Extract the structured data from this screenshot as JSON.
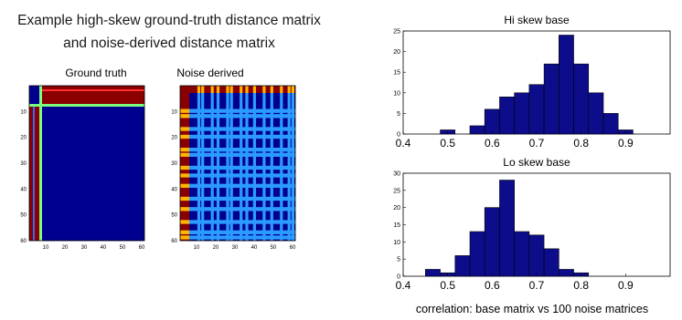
{
  "page": {
    "title_line1": "Example high-skew ground-truth distance matrix",
    "title_line2": "and noise-derived distance matrix"
  },
  "matrices": [
    {
      "title": "Ground truth",
      "xticks": [
        "10",
        "20",
        "30",
        "40",
        "50",
        "60"
      ],
      "yticks": [
        "10",
        "20",
        "30",
        "40",
        "50",
        "60"
      ]
    },
    {
      "title": "Noise derived",
      "xticks": [
        "10",
        "20",
        "30",
        "40",
        "50",
        "60"
      ],
      "yticks": [
        "10",
        "20",
        "30",
        "40",
        "50",
        "60"
      ]
    }
  ],
  "chart_data": [
    {
      "type": "bar",
      "title": "Hi skew base",
      "xlabel": "",
      "ylabel": "",
      "xlim": [
        0.4,
        1.0
      ],
      "ylim": [
        0,
        25
      ],
      "xticks": [
        0.4,
        0.5,
        0.6,
        0.7,
        0.8,
        0.9
      ],
      "yticks": [
        0,
        5,
        10,
        15,
        20,
        25
      ],
      "bin_width": 0.0333,
      "bin_starts": [
        0.45,
        0.4833,
        0.5167,
        0.55,
        0.5833,
        0.6167,
        0.65,
        0.6833,
        0.7167,
        0.75,
        0.7833,
        0.8167,
        0.85,
        0.8833
      ],
      "values": [
        0,
        1,
        0,
        2,
        6,
        9,
        10,
        12,
        17,
        24,
        17,
        10,
        5,
        1
      ],
      "grid": false,
      "color": "#0d0d8c"
    },
    {
      "type": "bar",
      "title": "Lo skew base",
      "xlabel": "correlation: base matrix vs 100 noise matrices",
      "ylabel": "",
      "xlim": [
        0.4,
        1.0
      ],
      "ylim": [
        0,
        30
      ],
      "xticks": [
        0.4,
        0.5,
        0.6,
        0.7,
        0.8,
        0.9
      ],
      "yticks": [
        0,
        5,
        10,
        15,
        20,
        25,
        30
      ],
      "bin_width": 0.0333,
      "bin_starts": [
        0.45,
        0.4833,
        0.5167,
        0.55,
        0.5833,
        0.6167,
        0.65,
        0.6833,
        0.7167,
        0.75,
        0.7833,
        0.8167
      ],
      "values": [
        2,
        1,
        6,
        13,
        20,
        28,
        13,
        12,
        8,
        2,
        1,
        0
      ],
      "grid": false,
      "color": "#0d0d8c"
    }
  ]
}
